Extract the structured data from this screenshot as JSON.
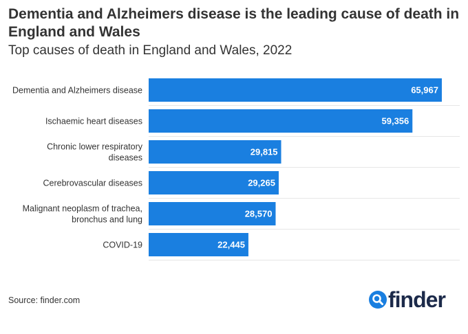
{
  "title": "Dementia and Alzheimers disease is the leading cause of death in England and Wales",
  "subtitle": "Top causes of death in England and Wales, 2022",
  "source": "Source: finder.com",
  "logo": {
    "icon": "search-icon",
    "text": "finder"
  },
  "colors": {
    "bar": "#1a7fe0",
    "logo_text": "#1c2a4a",
    "logo_icon": "#1a7fe0",
    "grid": "#e6e6e6"
  },
  "chart_data": {
    "type": "bar",
    "orientation": "horizontal",
    "title": "Dementia and Alzheimers disease is the leading cause of death in England and Wales",
    "subtitle": "Top causes of death in England and Wales, 2022",
    "categories": [
      [
        "Dementia and Alzheimers disease"
      ],
      [
        "Ischaemic heart diseases"
      ],
      [
        "Chronic lower respiratory",
        "diseases"
      ],
      [
        "Cerebrovascular diseases"
      ],
      [
        "Malignant neoplasm of trachea,",
        "bronchus and lung"
      ],
      [
        "COVID-19"
      ]
    ],
    "values": [
      65967,
      59356,
      29815,
      29265,
      28570,
      22445
    ],
    "value_labels": [
      "65,967",
      "59,356",
      "29,815",
      "29,265",
      "28,570",
      "22,445"
    ],
    "xlim": [
      0,
      70000
    ],
    "xlabel": "",
    "ylabel": "",
    "grid": true
  }
}
